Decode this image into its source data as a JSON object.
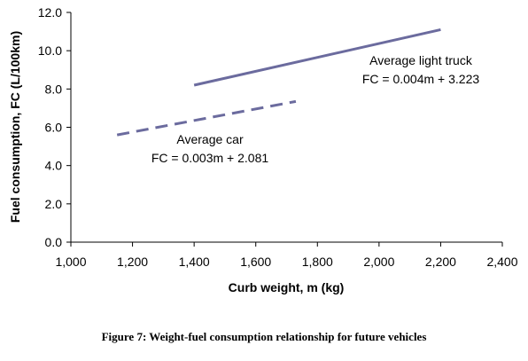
{
  "chart_data": {
    "type": "line",
    "xlabel": "Curb weight, m (kg)",
    "ylabel": "Fuel consumption, FC (L/100km)",
    "xlim": [
      1000,
      2400
    ],
    "ylim": [
      0,
      12
    ],
    "x_ticks": [
      "1,000",
      "1,200",
      "1,400",
      "1,600",
      "1,800",
      "2,000",
      "2,200",
      "2,400"
    ],
    "y_ticks": [
      "0.0",
      "2.0",
      "4.0",
      "6.0",
      "8.0",
      "10.0",
      "12.0"
    ],
    "grid": false,
    "series": [
      {
        "name": "Average light truck",
        "equation": "FC = 0.004m + 3.223",
        "line_style": "solid",
        "color": "#6b6b9e",
        "x": [
          1400,
          2200
        ],
        "y": [
          8.2,
          11.1
        ]
      },
      {
        "name": "Average car",
        "equation": "FC = 0.003m + 2.081",
        "line_style": "dashed",
        "color": "#6b6b9e",
        "x": [
          1150,
          1730
        ],
        "y": [
          5.6,
          7.35
        ]
      }
    ]
  },
  "caption": "Figure 7: Weight-fuel consumption relationship for future vehicles"
}
